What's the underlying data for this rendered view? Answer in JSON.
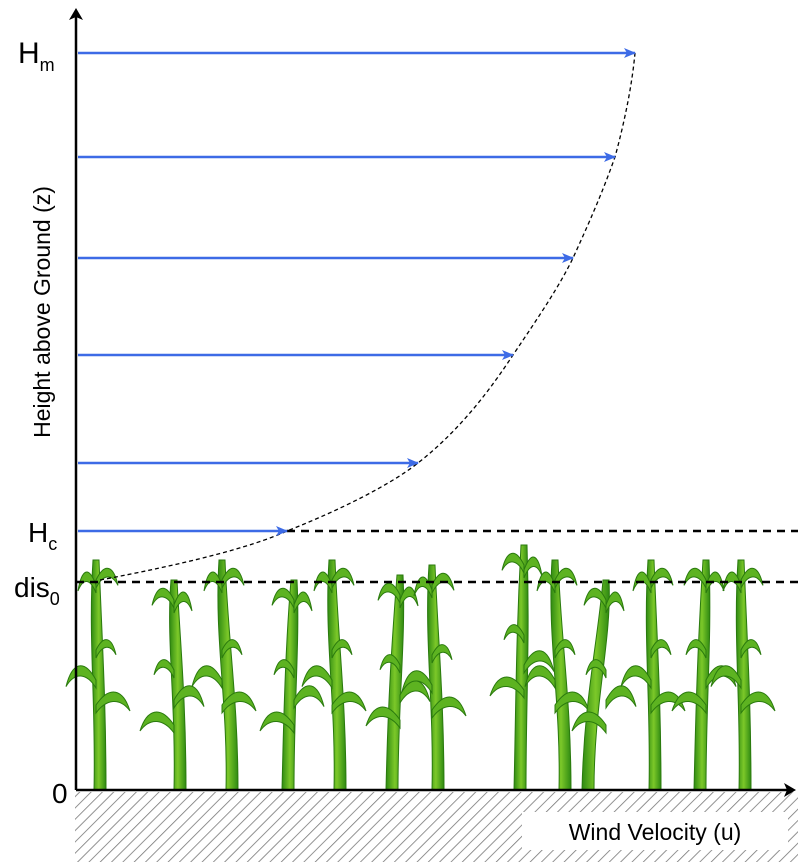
{
  "axes": {
    "y_label": "Height above Ground (z)",
    "x_label": "Wind Velocity (u)",
    "origin": "0"
  },
  "levels": [
    {
      "symbol": "H",
      "subscript": "m"
    },
    {
      "symbol": "H",
      "subscript": "c"
    },
    {
      "symbol": "dis",
      "subscript": "0"
    }
  ]
}
